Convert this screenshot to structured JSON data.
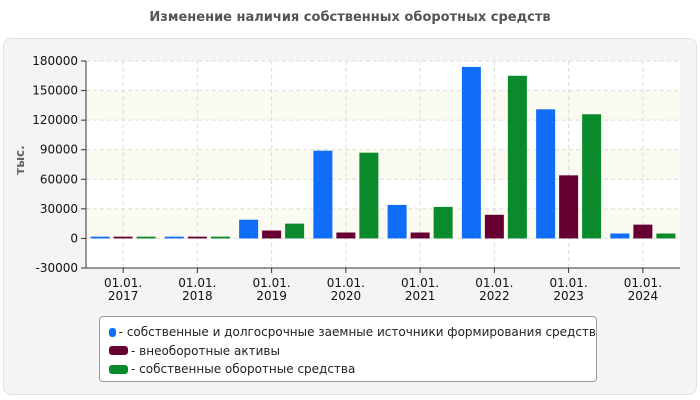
{
  "chart_data": {
    "type": "bar",
    "title": "Изменение наличия собственных оборотных средств",
    "ylabel": "тыс.",
    "ylim": [
      -30000,
      180000
    ],
    "yticks": [
      -30000,
      0,
      30000,
      60000,
      90000,
      120000,
      150000,
      180000
    ],
    "ytick_labels": [
      "-30000",
      "0",
      "30000",
      "60000",
      "90000",
      "120000",
      "150000",
      "180000"
    ],
    "categories": [
      {
        "line1": "01.01.",
        "line2": "2017"
      },
      {
        "line1": "01.01.",
        "line2": "2018"
      },
      {
        "line1": "01.01.",
        "line2": "2019"
      },
      {
        "line1": "01.01.",
        "line2": "2020"
      },
      {
        "line1": "01.01.",
        "line2": "2021"
      },
      {
        "line1": "01.01.",
        "line2": "2022"
      },
      {
        "line1": "01.01.",
        "line2": "2023"
      },
      {
        "line1": "01.01.",
        "line2": "2024"
      }
    ],
    "series": [
      {
        "name": "- собственные и долгосрочные заемные источники формирования средств",
        "color": "#0f6df7",
        "values": [
          1800,
          1800,
          19000,
          89000,
          34000,
          174000,
          131000,
          5000
        ]
      },
      {
        "name": "- внеоборотные активы",
        "color": "#660033",
        "values": [
          1800,
          1800,
          8000,
          6000,
          6000,
          24000,
          64000,
          14000
        ]
      },
      {
        "name": "- собственные оборотные средства",
        "color": "#0b8a2c",
        "values": [
          1800,
          1800,
          15000,
          87000,
          32000,
          165000,
          126000,
          5000
        ]
      }
    ],
    "grid": true,
    "legend_position": "bottom"
  }
}
